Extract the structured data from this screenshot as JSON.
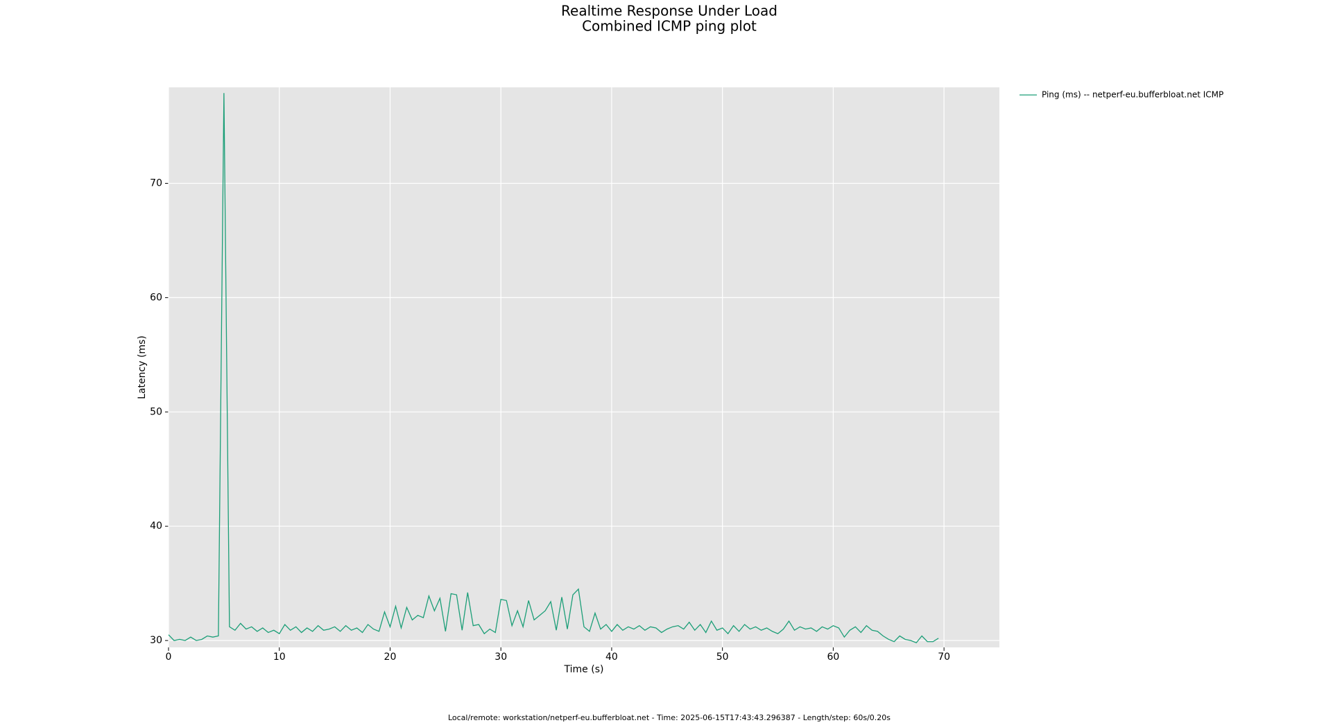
{
  "chart_data": {
    "type": "line",
    "title": "Realtime Response Under Load",
    "subtitle": "Combined ICMP ping plot",
    "xlabel": "Time (s)",
    "ylabel": "Latency (ms)",
    "footer": "Local/remote: workstation/netperf-eu.bufferbloat.net - Time: 2025-06-15T17:43:43.296387 - Length/step: 60s/0.20s",
    "xlim": [
      0,
      75
    ],
    "ylim": [
      29.4,
      78.4
    ],
    "xticks": [
      0,
      10,
      20,
      30,
      40,
      50,
      60,
      70
    ],
    "yticks": [
      30,
      40,
      50,
      60,
      70
    ],
    "grid": true,
    "background": "#e5e5e5",
    "legend": "outside-right",
    "x": [
      0,
      0.5,
      1,
      1.5,
      2,
      2.5,
      3,
      3.5,
      4,
      4.5,
      5,
      5.5,
      6,
      6.5,
      7,
      7.5,
      8,
      8.5,
      9,
      9.5,
      10,
      10.5,
      11,
      11.5,
      12,
      12.5,
      13,
      13.5,
      14,
      14.5,
      15,
      15.5,
      16,
      16.5,
      17,
      17.5,
      18,
      18.5,
      19,
      19.5,
      20,
      20.5,
      21,
      21.5,
      22,
      22.5,
      23,
      23.5,
      24,
      24.5,
      25,
      25.5,
      26,
      26.5,
      27,
      27.5,
      28,
      28.5,
      29,
      29.5,
      30,
      30.5,
      31,
      31.5,
      32,
      32.5,
      33,
      33.5,
      34,
      34.5,
      35,
      35.5,
      36,
      36.5,
      37,
      37.5,
      38,
      38.5,
      39,
      39.5,
      40,
      40.5,
      41,
      41.5,
      42,
      42.5,
      43,
      43.5,
      44,
      44.5,
      45,
      45.5,
      46,
      46.5,
      47,
      47.5,
      48,
      48.5,
      49,
      49.5,
      50,
      50.5,
      51,
      51.5,
      52,
      52.5,
      53,
      53.5,
      54,
      54.5,
      55,
      55.5,
      56,
      56.5,
      57,
      57.5,
      58,
      58.5,
      59,
      59.5,
      60,
      60.5,
      61,
      61.5,
      62,
      62.5,
      63,
      63.5,
      64,
      64.5,
      65,
      65.5,
      66,
      66.5,
      67,
      67.5,
      68,
      68.5,
      69,
      69.5
    ],
    "series": [
      {
        "name": "Ping (ms) -- netperf-eu.bufferbloat.net ICMP",
        "color": "#1b9e77",
        "values": [
          30.5,
          30.0,
          30.1,
          30.0,
          30.3,
          30.0,
          30.1,
          30.4,
          30.3,
          30.4,
          77.9,
          31.2,
          30.9,
          31.5,
          31.0,
          31.2,
          30.8,
          31.1,
          30.7,
          30.9,
          30.6,
          31.4,
          30.9,
          31.2,
          30.7,
          31.1,
          30.8,
          31.3,
          30.9,
          31.0,
          31.2,
          30.8,
          31.3,
          30.9,
          31.1,
          30.7,
          31.4,
          31.0,
          30.8,
          32.5,
          31.2,
          33.0,
          31.1,
          32.9,
          31.8,
          32.2,
          32.0,
          33.9,
          32.6,
          33.7,
          30.8,
          34.1,
          34.0,
          30.9,
          34.2,
          31.3,
          31.4,
          30.6,
          31.0,
          30.7,
          33.6,
          33.5,
          31.3,
          32.6,
          31.2,
          33.5,
          31.8,
          32.2,
          32.6,
          33.4,
          30.9,
          33.8,
          31.0,
          34.0,
          34.5,
          31.2,
          30.8,
          32.4,
          31.0,
          31.4,
          30.8,
          31.4,
          30.9,
          31.2,
          31.0,
          31.3,
          30.9,
          31.2,
          31.1,
          30.7,
          31.0,
          31.2,
          31.3,
          31.0,
          31.6,
          30.9,
          31.4,
          30.7,
          31.7,
          30.9,
          31.1,
          30.6,
          31.3,
          30.8,
          31.4,
          31.0,
          31.2,
          30.9,
          31.1,
          30.8,
          30.6,
          31.0,
          31.7,
          30.9,
          31.2,
          31.0,
          31.1,
          30.8,
          31.2,
          31.0,
          31.3,
          31.1,
          30.3,
          30.9,
          31.2,
          30.7,
          31.3,
          30.9,
          30.8,
          30.4,
          30.1,
          29.9,
          30.4,
          30.1,
          30.0,
          29.8,
          30.4,
          29.9,
          29.9,
          30.2
        ]
      }
    ]
  }
}
